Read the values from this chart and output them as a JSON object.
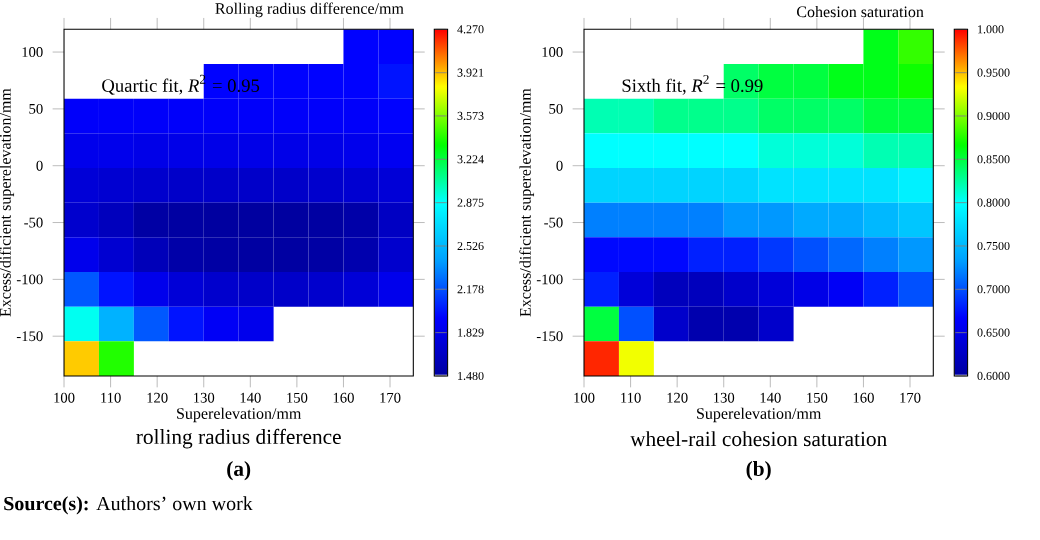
{
  "chart_data": [
    {
      "type": "heatmap",
      "title": "rolling radius difference",
      "subtitle": "(a)",
      "xlabel": "Superelevation/mm",
      "ylabel": "Excess/dificient superelevation/mm",
      "clabel": "Rolling radius difference/mm",
      "annotations": [
        "Quartic fit, *R*$^{2}$ = 0.95",
        "**Source(s):** Authors’ own work"
      ],
      "xlim": [
        100,
        175
      ],
      "ylim": [
        -185,
        120
      ],
      "xticks": [
        100,
        110,
        120,
        130,
        140,
        150,
        160,
        170
      ],
      "yticks": [
        -150,
        -100,
        -50,
        0,
        50,
        100
      ],
      "clim": [
        1.48,
        4.27
      ],
      "cticks": [
        {
          "value": 1.48,
          "label": "1.480"
        },
        {
          "value": 1.829,
          "label": "1.829"
        },
        {
          "value": 2.178,
          "label": "2.178"
        },
        {
          "value": 2.526,
          "label": "2.526"
        },
        {
          "value": 2.875,
          "label": "2.875"
        },
        {
          "value": 3.224,
          "label": "3.224"
        },
        {
          "value": 3.573,
          "label": "3.573"
        },
        {
          "value": 3.921,
          "label": "3.921"
        },
        {
          "value": 4.27,
          "label": "4.270"
        }
      ],
      "cells": [
        [
          null,
          null,
          null,
          null,
          null,
          null,
          null,
          null,
          1.95,
          1.95
        ],
        [
          null,
          null,
          null,
          null,
          1.95,
          1.95,
          1.95,
          1.95,
          1.95,
          2.0
        ],
        [
          1.92,
          1.92,
          1.92,
          1.92,
          1.92,
          1.92,
          1.92,
          1.92,
          1.92,
          1.95
        ],
        [
          1.85,
          1.85,
          1.83,
          1.83,
          1.83,
          1.83,
          1.83,
          1.83,
          1.85,
          1.88
        ],
        [
          1.75,
          1.72,
          1.7,
          1.68,
          1.68,
          1.68,
          1.68,
          1.7,
          1.72,
          1.75
        ],
        [
          1.7,
          1.62,
          1.5,
          1.49,
          1.48,
          1.48,
          1.48,
          1.49,
          1.52,
          1.65
        ],
        [
          1.85,
          1.72,
          1.6,
          1.52,
          1.5,
          1.49,
          1.49,
          1.5,
          1.55,
          1.7
        ],
        [
          2.2,
          2.0,
          1.85,
          1.75,
          1.7,
          1.68,
          1.68,
          1.7,
          1.75,
          1.85
        ],
        [
          2.9,
          2.5,
          2.2,
          2.0,
          1.9,
          1.85,
          null,
          null,
          null,
          null
        ],
        [
          3.9,
          3.4,
          null,
          null,
          null,
          null,
          null,
          null,
          null,
          null
        ]
      ]
    },
    {
      "type": "heatmap",
      "title": "wheel-rail cohesion saturation",
      "subtitle": "(b)",
      "xlabel": "Superelevation/mm",
      "ylabel": "Excess/dificient superelevation/mm",
      "clabel": "Cohesion saturation",
      "annotations": [
        "Sixth fit, *R*$^{2}$ = 0.99"
      ],
      "xlim": [
        100,
        175
      ],
      "ylim": [
        -185,
        120
      ],
      "xticks": [
        100,
        110,
        120,
        130,
        140,
        150,
        160,
        170
      ],
      "yticks": [
        -150,
        -100,
        -50,
        0,
        50,
        100
      ],
      "clim": [
        0.6,
        1.0
      ],
      "cticks": [
        {
          "value": 0.6,
          "label": "0.6000"
        },
        {
          "value": 0.65,
          "label": "0.6500"
        },
        {
          "value": 0.7,
          "label": "0.7000"
        },
        {
          "value": 0.75,
          "label": "0.7500"
        },
        {
          "value": 0.8,
          "label": "0.8000"
        },
        {
          "value": 0.85,
          "label": "0.8500"
        },
        {
          "value": 0.9,
          "label": "0.9000"
        },
        {
          "value": 0.95,
          "label": "0.9500"
        },
        {
          "value": 1.0,
          "label": "1.000"
        }
      ],
      "cells": [
        [
          null,
          null,
          null,
          null,
          null,
          null,
          null,
          null,
          0.86,
          0.88
        ],
        [
          null,
          null,
          null,
          null,
          0.84,
          0.85,
          0.85,
          0.86,
          0.86,
          0.87
        ],
        [
          0.82,
          0.82,
          0.83,
          0.83,
          0.83,
          0.84,
          0.84,
          0.84,
          0.85,
          0.85
        ],
        [
          0.8,
          0.8,
          0.8,
          0.8,
          0.8,
          0.81,
          0.81,
          0.81,
          0.82,
          0.82
        ],
        [
          0.77,
          0.77,
          0.77,
          0.77,
          0.77,
          0.78,
          0.78,
          0.78,
          0.78,
          0.79
        ],
        [
          0.72,
          0.72,
          0.72,
          0.72,
          0.73,
          0.73,
          0.74,
          0.74,
          0.75,
          0.76
        ],
        [
          0.67,
          0.67,
          0.67,
          0.68,
          0.68,
          0.69,
          0.7,
          0.71,
          0.72,
          0.73
        ],
        [
          0.68,
          0.64,
          0.62,
          0.62,
          0.63,
          0.64,
          0.65,
          0.66,
          0.68,
          0.7
        ],
        [
          0.85,
          0.7,
          0.63,
          0.61,
          0.61,
          0.63,
          null,
          null,
          null,
          null
        ],
        [
          0.99,
          0.93,
          null,
          null,
          null,
          null,
          null,
          null,
          null,
          null
        ]
      ]
    }
  ]
}
